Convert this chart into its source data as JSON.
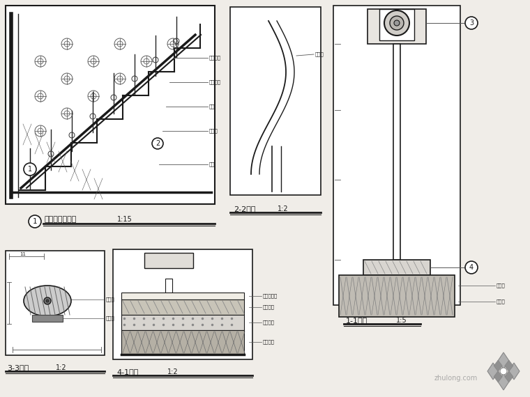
{
  "bg_color": "#f0ede8",
  "labels": {
    "view1": "楼梯栏杆立面图",
    "view1_scale": "1:15",
    "view2": "2-2剖面",
    "view2_scale": "1:2",
    "view3": "3-3剖面",
    "view3_scale": "1:2",
    "view4": "4-1剖面",
    "view4_scale": "1:2",
    "view5": "1-1剖面",
    "view5_scale": "1:5"
  },
  "watermark": "zhulong.com",
  "line_color": "#1a1a1a"
}
